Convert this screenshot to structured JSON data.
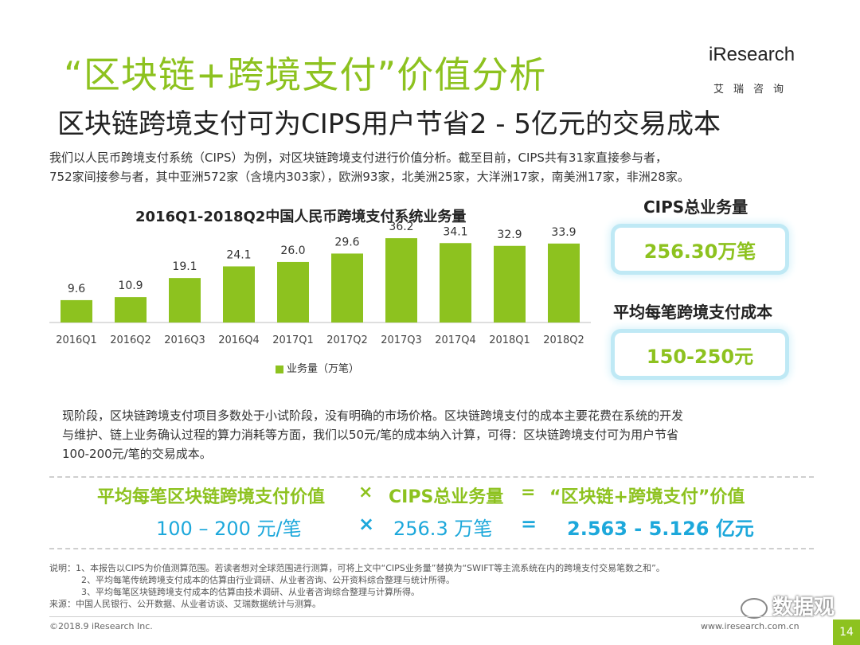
{
  "header": {
    "title": "“区块链+跨境支付”价值分析",
    "subtitle": "区块链跨境支付可为CIPS用户节省2 - 5亿元的交易成本",
    "logo_text": "iResearch",
    "logo_cn": "艾瑞咨询"
  },
  "intro": {
    "line1": "我们以人民币跨境支付系统（CIPS）为例，对区块链跨境支付进行价值分析。截至目前，CIPS共有31家直接参与者，",
    "line2": "752家间接参与者，其中亚洲572家（含境内303家），欧洲93家，北美洲25家，大洋洲17家，南美洲17家，非洲28家。"
  },
  "chart_data": {
    "type": "bar",
    "title": "2016Q1-2018Q2中国人民币跨境支付系统业务量",
    "categories": [
      "2016Q1",
      "2016Q2",
      "2016Q3",
      "2016Q4",
      "2017Q1",
      "2017Q2",
      "2017Q3",
      "2017Q4",
      "2018Q1",
      "2018Q2"
    ],
    "series": [
      {
        "name": "业务量（万笔）",
        "values": [
          9.6,
          10.9,
          19.1,
          24.1,
          26.0,
          29.6,
          36.2,
          34.1,
          32.9,
          33.9
        ]
      }
    ],
    "value_labels": [
      "9.6",
      "10.9",
      "19.1",
      "24.1",
      "26.0",
      "29.6",
      "36.2",
      "34.1",
      "32.9",
      "33.9"
    ],
    "ylim": [
      0,
      40
    ],
    "grid": false,
    "legend_position": "bottom",
    "color": "#8dc21f"
  },
  "kpis": [
    {
      "label": "CIPS总业务量",
      "value": "256.30万笔"
    },
    {
      "label": "平均每笔跨境支付成本",
      "value": "150-250元"
    }
  ],
  "note": {
    "line1": "现阶段，区块链跨境支付项目多数处于小试阶段，没有明确的市场价格。区块链跨境支付的成本主要花费在系统的开发",
    "line2": "与维护、链上业务确认过程的算力消耗等方面，我们以50元/笔的成本纳入计算，可得：区块链跨境支付可为用户节省",
    "line3": "100-200元/笔的交易成本。"
  },
  "formula": {
    "row1": {
      "a": "平均每笔区块链跨境支付价值",
      "op1": "×",
      "b": "CIPS总业务量",
      "op2": "=",
      "c": "“区块链+跨境支付”价值"
    },
    "row2": {
      "a": "100 – 200 元/笔",
      "op1": "×",
      "b": "256.3 万笔",
      "op2": "=",
      "c": "2.563 - 5.126 亿元"
    }
  },
  "footnotes": {
    "l1": "说明：1、本报告以CIPS为价值测算范围。若读者想对全球范围进行测算，可将上文中“CIPS业务量”替换为“SWIFT等主流系统在内的跨境支付交易笔数之和”。",
    "l2": "2、平均每笔传统跨境支付成本的估算由行业调研、从业者咨询、公开资料综合整理与统计所得。",
    "l3": "3、平均每笔区块链跨境支付成本的估算由技术调研、从业者咨询综合整理与计算所得。",
    "l4": "来源：中国人民银行、公开数据、从业者访谈、艾瑞数据统计与测算。"
  },
  "footer": {
    "copyright": "©2018.9 iResearch Inc.",
    "url": "www.iresearch.com.cn",
    "page": "14",
    "watermark": "数据观"
  },
  "colors": {
    "accent": "#8dc21f",
    "blue": "#1da8db"
  }
}
